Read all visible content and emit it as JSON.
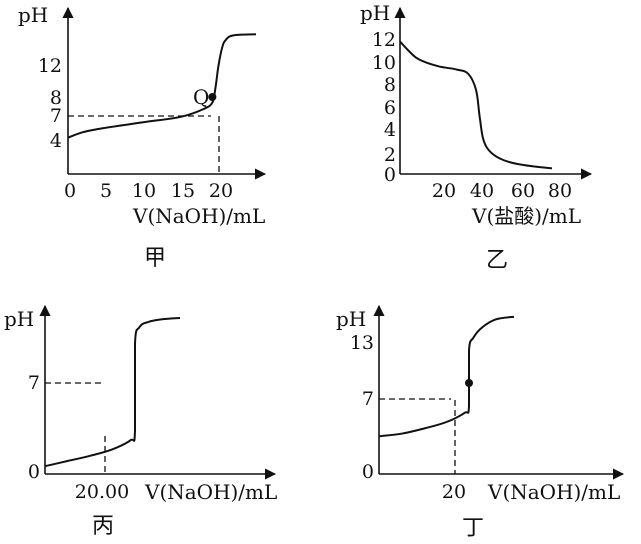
{
  "chart_data": [
    {
      "id": "jia",
      "type": "line",
      "title": "甲",
      "ylabel": "pH",
      "xlabel": "V(NaOH)/mL",
      "x_ticks": [
        "0",
        "5",
        "10",
        "15",
        "20"
      ],
      "y_ticks": [
        "4",
        "7",
        "8",
        "12"
      ],
      "xlim": [
        0,
        25
      ],
      "ylim": [
        0,
        14
      ],
      "x": [
        0,
        2,
        5,
        10,
        15,
        18,
        19.2,
        19.6,
        20,
        20.5,
        21,
        22,
        25
      ],
      "y": [
        3.3,
        3.8,
        4.2,
        4.7,
        5.2,
        5.9,
        6.5,
        7.8,
        9.8,
        11.5,
        12.2,
        12.6,
        12.7
      ],
      "annotations": [
        {
          "label": "Q",
          "x": 19.2,
          "y": 7
        }
      ],
      "guides": {
        "x": 20,
        "y": 7
      }
    },
    {
      "id": "yi",
      "type": "line",
      "title": "乙",
      "ylabel": "pH",
      "xlabel": "V(盐酸)/mL",
      "x_ticks": [
        "20",
        "40",
        "60",
        "80"
      ],
      "y_ticks": [
        "0",
        "2",
        "4",
        "6",
        "8",
        "10",
        "12"
      ],
      "xlim": [
        0,
        90
      ],
      "ylim": [
        0,
        13
      ],
      "x": [
        0,
        5,
        10,
        20,
        30,
        36,
        40,
        42,
        44,
        48,
        55,
        65,
        80
      ],
      "y": [
        11.8,
        10.9,
        10.2,
        9.6,
        9.3,
        8.9,
        7.5,
        5.0,
        3.0,
        1.9,
        1.2,
        0.8,
        0.5
      ],
      "annotations": [],
      "guides": null
    },
    {
      "id": "bing",
      "type": "line",
      "title": "丙",
      "ylabel": "pH",
      "xlabel": "V(NaOH)/mL",
      "x_ticks": [
        "20.00"
      ],
      "y_ticks": [
        "0",
        "7"
      ],
      "xlim": [
        0,
        30
      ],
      "ylim": [
        0,
        14
      ],
      "x": [
        0,
        5,
        10,
        15,
        19,
        20,
        20,
        21,
        23,
        26,
        30
      ],
      "y": [
        0.6,
        1.0,
        1.4,
        1.9,
        2.6,
        3.3,
        10.0,
        11.3,
        11.7,
        11.9,
        12.0
      ],
      "annotations": [],
      "guides": {
        "x": 20,
        "y": 7
      }
    },
    {
      "id": "ding",
      "type": "line",
      "title": "丁",
      "ylabel": "pH",
      "xlabel": "V(NaOH)/mL",
      "x_ticks": [
        "20"
      ],
      "y_ticks": [
        "0",
        "7",
        "13"
      ],
      "xlim": [
        0,
        30
      ],
      "ylim": [
        0,
        14
      ],
      "x": [
        0,
        5,
        10,
        15,
        19,
        20,
        20,
        21,
        23,
        26,
        30
      ],
      "y": [
        2.9,
        3.1,
        3.5,
        4.0,
        4.7,
        5.2,
        9.5,
        10.5,
        11.3,
        11.9,
        12.1
      ],
      "annotations": [
        {
          "label": "",
          "x": 20,
          "y": 7
        }
      ],
      "guides": {
        "x": 20,
        "y": 7
      }
    }
  ]
}
